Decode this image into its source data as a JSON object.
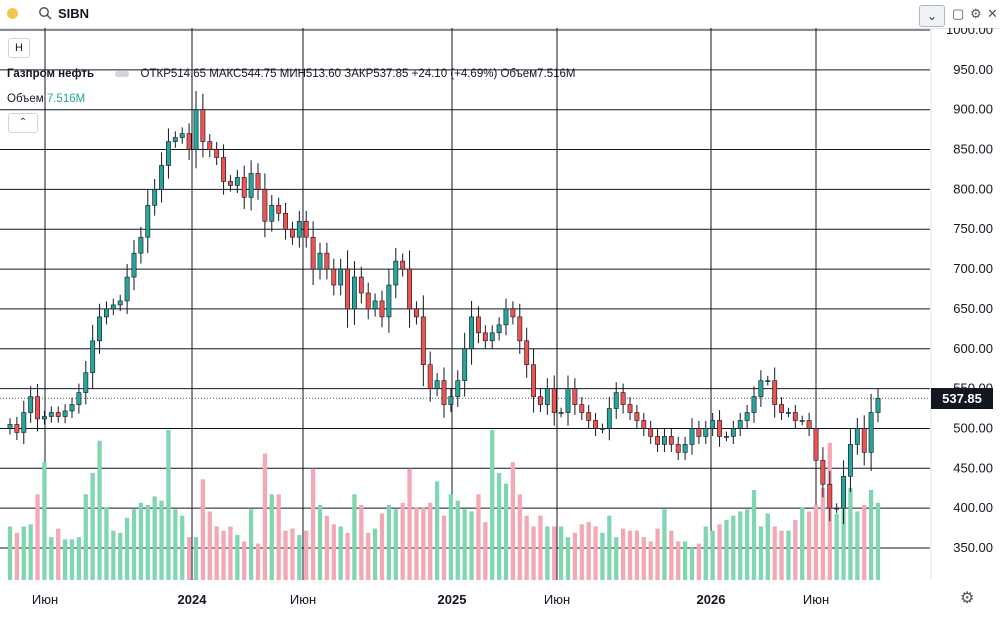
{
  "symbol": "SIBN",
  "legend": {
    "name": "Газпром нефть",
    "ohlc": "ОТКР514.65  МАКС544.75  МИН513.60  ЗАКР537.85  +24.10 (+4.69%)  Объем7.516M",
    "volume_label": "Объем",
    "volume_value": "7.516M"
  },
  "buttons": {
    "h": "H",
    "collapse": "⌃",
    "dropdown": "⌄"
  },
  "last_price_label": "537.85",
  "colors": {
    "up": "#26a69a",
    "down": "#ef5350",
    "up_vol": "#7fd6b0",
    "down_vol": "#f4a8b3",
    "grid": "#131722"
  },
  "chart_data": {
    "type": "candlestick",
    "y_ticks": [
      "1000.00",
      "950.00",
      "900.00",
      "850.00",
      "800.00",
      "750.00",
      "700.00",
      "650.00",
      "600.00",
      "550.00",
      "500.00",
      "450.00",
      "400.00",
      "350.00"
    ],
    "x_ticks": [
      "Июн",
      "2024",
      "Июн",
      "2025",
      "Июн",
      "2026",
      "Июн"
    ],
    "ylim": [
      325,
      1005
    ],
    "last_price": 537.85,
    "series": [
      {
        "name": "price",
        "closes": [
          505,
          495,
          520,
          540,
          512,
          515,
          520,
          515,
          522,
          530,
          545,
          570,
          610,
          640,
          650,
          655,
          660,
          690,
          720,
          740,
          780,
          800,
          830,
          860,
          865,
          870,
          850,
          900,
          860,
          850,
          840,
          810,
          805,
          815,
          790,
          820,
          800,
          760,
          780,
          770,
          750,
          740,
          760,
          740,
          700,
          720,
          700,
          680,
          700,
          650,
          690,
          670,
          650,
          660,
          640,
          680,
          710,
          700,
          650,
          640,
          580,
          550,
          560,
          530,
          540,
          560,
          600,
          640,
          620,
          610,
          620,
          630,
          650,
          640,
          610,
          580,
          540,
          530,
          550,
          520,
          520,
          550,
          530,
          520,
          510,
          500,
          500,
          525,
          545,
          530,
          520,
          510,
          500,
          490,
          480,
          490,
          480,
          470,
          480,
          500,
          490,
          500,
          510,
          490,
          490,
          500,
          510,
          520,
          540,
          560,
          560,
          530,
          520,
          520,
          510,
          510,
          500,
          460,
          430,
          400,
          400,
          440,
          480,
          500,
          470,
          520,
          537.85
        ]
      },
      {
        "name": "Объем",
        "values": [
          2.5,
          2.2,
          2.5,
          2.6,
          4,
          5.5,
          2,
          2.4,
          1.9,
          1.9,
          2,
          4,
          5,
          6.5,
          3.4,
          2.3,
          2.2,
          2.9,
          3.3,
          3.6,
          3.5,
          3.9,
          3.7,
          7,
          3.3,
          3,
          2,
          2,
          4.7,
          3.2,
          2.5,
          2.3,
          2.5,
          2.1,
          1.8,
          3.3,
          1.7,
          5.9,
          4,
          4,
          2.3,
          2.4,
          2.1,
          2.3,
          5.2,
          3.5,
          3,
          2.6,
          2.5,
          2.2,
          4,
          3.5,
          2.2,
          2.4,
          3.1,
          3.5,
          3.3,
          3.6,
          5.2,
          3.4,
          3.4,
          3.6,
          4.6,
          3,
          4,
          3.7,
          3.3,
          3.2,
          4,
          2.7,
          7,
          5,
          4.5,
          5.5,
          4,
          3,
          2.5,
          3,
          2.5,
          2.5,
          2.5,
          2,
          2.2,
          2.6,
          2.7,
          2.5,
          2.2,
          3,
          2,
          2.4,
          2.3,
          2.3,
          2,
          1.8,
          2.4,
          3.3,
          2.3,
          1.8,
          1.8,
          1.5,
          1.7,
          2.5,
          2.3,
          2.6,
          2.8,
          3,
          3.2,
          3.3,
          4.2,
          2.5,
          3.1,
          2.5,
          2.3,
          2.3,
          2.8,
          3.4,
          3.2,
          3.5,
          4.3,
          6.4,
          3.1,
          4.2,
          4.3,
          3.2,
          3.5,
          4.2,
          3.6
        ]
      }
    ]
  }
}
